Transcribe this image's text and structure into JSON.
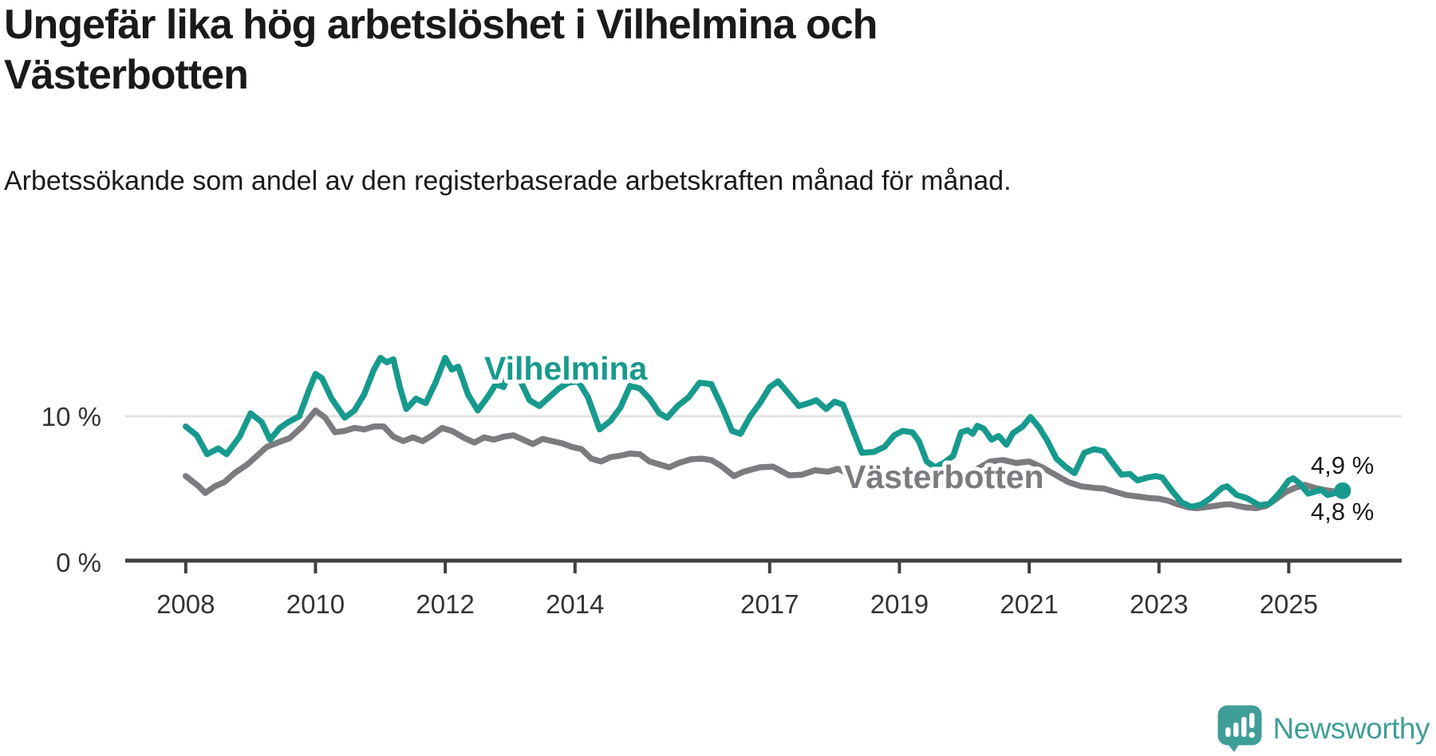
{
  "header": {
    "title": "Ungefär lika hög arbetslöshet i Vilhelmina och Västerbotten",
    "subtitle": "Arbetssökande som andel av den registerbaserade arbetskraften månad för månad."
  },
  "footer": {
    "brand": "Newsworthy"
  },
  "colors": {
    "vilhelmina": "#179a8d",
    "vasterbotten": "#7b7b80",
    "text": "#1a1a1a",
    "axis": "#404040",
    "axis_text": "#333333",
    "gridline": "#e3e3e3",
    "logo_teal": "#3f9e97"
  },
  "chart_data": {
    "type": "line",
    "unit": "%",
    "x_axis": {
      "ticks": [
        2008,
        2010,
        2012,
        2014,
        2017,
        2019,
        2021,
        2023,
        2025
      ],
      "range_years": [
        2007.1,
        2026.7
      ]
    },
    "y_axis": {
      "ticks_pct": [
        10,
        0
      ],
      "tick_labels": [
        "10 %",
        "0 %"
      ],
      "gridline_pct": 10,
      "ylim": [
        0,
        15.5
      ]
    },
    "series": [
      {
        "id": "vilhelmina",
        "name": "Vilhelmina",
        "color": "#179a8d",
        "end_label": "4,9 %",
        "end_value": 4.9,
        "end_dot": true,
        "points": [
          [
            2008.0,
            9.3
          ],
          [
            2008.17,
            8.7
          ],
          [
            2008.33,
            7.4
          ],
          [
            2008.5,
            7.8
          ],
          [
            2008.63,
            7.4
          ],
          [
            2008.83,
            8.6
          ],
          [
            2009.0,
            10.2
          ],
          [
            2009.17,
            9.6
          ],
          [
            2009.3,
            8.4
          ],
          [
            2009.45,
            9.2
          ],
          [
            2009.58,
            9.6
          ],
          [
            2009.75,
            10.0
          ],
          [
            2009.9,
            11.8
          ],
          [
            2010.0,
            12.9
          ],
          [
            2010.1,
            12.6
          ],
          [
            2010.25,
            11.2
          ],
          [
            2010.45,
            9.9
          ],
          [
            2010.6,
            10.4
          ],
          [
            2010.75,
            11.5
          ],
          [
            2010.9,
            13.2
          ],
          [
            2011.0,
            14.0
          ],
          [
            2011.1,
            13.7
          ],
          [
            2011.2,
            13.9
          ],
          [
            2011.3,
            12.0
          ],
          [
            2011.4,
            10.5
          ],
          [
            2011.55,
            11.2
          ],
          [
            2011.7,
            10.9
          ],
          [
            2011.85,
            12.3
          ],
          [
            2012.0,
            14.0
          ],
          [
            2012.1,
            13.2
          ],
          [
            2012.2,
            13.4
          ],
          [
            2012.35,
            11.5
          ],
          [
            2012.5,
            10.4
          ],
          [
            2012.65,
            11.3
          ],
          [
            2012.78,
            12.2
          ],
          [
            2012.9,
            12.0
          ],
          [
            2013.0,
            13.4
          ],
          [
            2013.15,
            12.5
          ],
          [
            2013.3,
            11.1
          ],
          [
            2013.45,
            10.7
          ],
          [
            2013.6,
            11.3
          ],
          [
            2013.75,
            11.9
          ],
          [
            2013.9,
            12.3
          ],
          [
            2014.05,
            12.4
          ],
          [
            2014.2,
            11.3
          ],
          [
            2014.38,
            9.1
          ],
          [
            2014.55,
            9.7
          ],
          [
            2014.7,
            10.6
          ],
          [
            2014.85,
            12.1
          ],
          [
            2015.0,
            11.9
          ],
          [
            2015.15,
            11.2
          ],
          [
            2015.3,
            10.2
          ],
          [
            2015.42,
            9.9
          ],
          [
            2015.58,
            10.7
          ],
          [
            2015.75,
            11.3
          ],
          [
            2015.92,
            12.3
          ],
          [
            2016.1,
            12.2
          ],
          [
            2016.28,
            10.5
          ],
          [
            2016.42,
            9.0
          ],
          [
            2016.55,
            8.8
          ],
          [
            2016.7,
            10.0
          ],
          [
            2016.85,
            10.9
          ],
          [
            2017.0,
            12.0
          ],
          [
            2017.13,
            12.4
          ],
          [
            2017.3,
            11.5
          ],
          [
            2017.45,
            10.7
          ],
          [
            2017.6,
            10.9
          ],
          [
            2017.72,
            11.1
          ],
          [
            2017.87,
            10.5
          ],
          [
            2018.0,
            11.0
          ],
          [
            2018.13,
            10.8
          ],
          [
            2018.27,
            9.2
          ],
          [
            2018.42,
            7.5
          ],
          [
            2018.6,
            7.55
          ],
          [
            2018.77,
            7.9
          ],
          [
            2018.92,
            8.7
          ],
          [
            2019.05,
            9.0
          ],
          [
            2019.2,
            8.9
          ],
          [
            2019.3,
            8.3
          ],
          [
            2019.42,
            6.9
          ],
          [
            2019.55,
            6.5
          ],
          [
            2019.7,
            6.85
          ],
          [
            2019.83,
            7.3
          ],
          [
            2019.95,
            8.9
          ],
          [
            2020.05,
            9.05
          ],
          [
            2020.13,
            8.8
          ],
          [
            2020.2,
            9.35
          ],
          [
            2020.3,
            9.15
          ],
          [
            2020.42,
            8.4
          ],
          [
            2020.53,
            8.65
          ],
          [
            2020.65,
            8.05
          ],
          [
            2020.75,
            8.85
          ],
          [
            2020.9,
            9.3
          ],
          [
            2021.02,
            9.95
          ],
          [
            2021.15,
            9.25
          ],
          [
            2021.27,
            8.4
          ],
          [
            2021.42,
            7.1
          ],
          [
            2021.57,
            6.5
          ],
          [
            2021.7,
            6.1
          ],
          [
            2021.85,
            7.5
          ],
          [
            2022.0,
            7.75
          ],
          [
            2022.15,
            7.6
          ],
          [
            2022.3,
            6.7
          ],
          [
            2022.42,
            6.0
          ],
          [
            2022.55,
            6.05
          ],
          [
            2022.67,
            5.6
          ],
          [
            2022.82,
            5.8
          ],
          [
            2022.95,
            5.9
          ],
          [
            2023.05,
            5.8
          ],
          [
            2023.2,
            4.9
          ],
          [
            2023.35,
            4.1
          ],
          [
            2023.5,
            3.8
          ],
          [
            2023.65,
            3.95
          ],
          [
            2023.8,
            4.4
          ],
          [
            2023.97,
            5.1
          ],
          [
            2024.05,
            5.2
          ],
          [
            2024.2,
            4.6
          ],
          [
            2024.35,
            4.4
          ],
          [
            2024.55,
            3.9
          ],
          [
            2024.7,
            4.0
          ],
          [
            2024.85,
            4.7
          ],
          [
            2025.0,
            5.6
          ],
          [
            2025.07,
            5.75
          ],
          [
            2025.17,
            5.4
          ],
          [
            2025.3,
            4.7
          ],
          [
            2025.42,
            4.85
          ],
          [
            2025.5,
            4.95
          ],
          [
            2025.6,
            4.6
          ],
          [
            2025.72,
            4.75
          ],
          [
            2025.83,
            4.9
          ]
        ]
      },
      {
        "id": "vasterbotten",
        "name": "Västerbotten",
        "color": "#7b7b80",
        "end_label": "4,8 %",
        "end_value": 4.8,
        "end_dot": false,
        "points": [
          [
            2008.0,
            5.9
          ],
          [
            2008.2,
            5.2
          ],
          [
            2008.3,
            4.75
          ],
          [
            2008.45,
            5.2
          ],
          [
            2008.6,
            5.5
          ],
          [
            2008.75,
            6.1
          ],
          [
            2008.95,
            6.7
          ],
          [
            2009.1,
            7.3
          ],
          [
            2009.25,
            7.9
          ],
          [
            2009.45,
            8.25
          ],
          [
            2009.6,
            8.5
          ],
          [
            2009.8,
            9.3
          ],
          [
            2010.0,
            10.4
          ],
          [
            2010.15,
            9.9
          ],
          [
            2010.3,
            8.9
          ],
          [
            2010.45,
            9.0
          ],
          [
            2010.6,
            9.2
          ],
          [
            2010.75,
            9.1
          ],
          [
            2010.9,
            9.3
          ],
          [
            2011.05,
            9.3
          ],
          [
            2011.2,
            8.6
          ],
          [
            2011.35,
            8.3
          ],
          [
            2011.5,
            8.55
          ],
          [
            2011.65,
            8.3
          ],
          [
            2011.8,
            8.7
          ],
          [
            2011.95,
            9.2
          ],
          [
            2012.1,
            9.0
          ],
          [
            2012.3,
            8.5
          ],
          [
            2012.45,
            8.2
          ],
          [
            2012.6,
            8.55
          ],
          [
            2012.75,
            8.4
          ],
          [
            2012.9,
            8.6
          ],
          [
            2013.05,
            8.7
          ],
          [
            2013.2,
            8.4
          ],
          [
            2013.35,
            8.1
          ],
          [
            2013.5,
            8.45
          ],
          [
            2013.65,
            8.3
          ],
          [
            2013.8,
            8.15
          ],
          [
            2013.95,
            7.9
          ],
          [
            2014.1,
            7.75
          ],
          [
            2014.25,
            7.1
          ],
          [
            2014.4,
            6.9
          ],
          [
            2014.55,
            7.2
          ],
          [
            2014.7,
            7.3
          ],
          [
            2014.85,
            7.45
          ],
          [
            2015.0,
            7.4
          ],
          [
            2015.15,
            6.9
          ],
          [
            2015.3,
            6.7
          ],
          [
            2015.45,
            6.5
          ],
          [
            2015.6,
            6.8
          ],
          [
            2015.78,
            7.05
          ],
          [
            2015.95,
            7.1
          ],
          [
            2016.1,
            7.0
          ],
          [
            2016.25,
            6.6
          ],
          [
            2016.45,
            5.9
          ],
          [
            2016.6,
            6.2
          ],
          [
            2016.85,
            6.5
          ],
          [
            2017.05,
            6.55
          ],
          [
            2017.3,
            5.95
          ],
          [
            2017.5,
            6.0
          ],
          [
            2017.7,
            6.3
          ],
          [
            2017.9,
            6.2
          ],
          [
            2018.05,
            6.4
          ],
          [
            2018.25,
            6.0
          ],
          [
            2018.45,
            5.7
          ],
          [
            2018.65,
            5.6
          ],
          [
            2018.85,
            5.8
          ],
          [
            2019.0,
            5.9
          ],
          [
            2019.2,
            5.7
          ],
          [
            2019.4,
            5.4
          ],
          [
            2019.6,
            5.3
          ],
          [
            2019.8,
            5.4
          ],
          [
            2020.0,
            5.7
          ],
          [
            2020.2,
            6.4
          ],
          [
            2020.4,
            6.9
          ],
          [
            2020.6,
            7.0
          ],
          [
            2020.8,
            6.8
          ],
          [
            2021.0,
            6.9
          ],
          [
            2021.2,
            6.5
          ],
          [
            2021.4,
            6.0
          ],
          [
            2021.6,
            5.5
          ],
          [
            2021.8,
            5.2
          ],
          [
            2022.0,
            5.1
          ],
          [
            2022.15,
            5.05
          ],
          [
            2022.3,
            4.85
          ],
          [
            2022.5,
            4.6
          ],
          [
            2022.68,
            4.5
          ],
          [
            2022.85,
            4.4
          ],
          [
            2023.0,
            4.35
          ],
          [
            2023.15,
            4.2
          ],
          [
            2023.3,
            3.95
          ],
          [
            2023.45,
            3.76
          ],
          [
            2023.58,
            3.7
          ],
          [
            2023.7,
            3.76
          ],
          [
            2023.85,
            3.85
          ],
          [
            2024.0,
            3.95
          ],
          [
            2024.1,
            3.97
          ],
          [
            2024.22,
            3.85
          ],
          [
            2024.35,
            3.75
          ],
          [
            2024.5,
            3.7
          ],
          [
            2024.65,
            3.85
          ],
          [
            2024.8,
            4.3
          ],
          [
            2024.95,
            4.8
          ],
          [
            2025.1,
            5.1
          ],
          [
            2025.25,
            5.3
          ],
          [
            2025.4,
            5.1
          ],
          [
            2025.55,
            4.95
          ],
          [
            2025.7,
            4.85
          ],
          [
            2025.83,
            4.8
          ]
        ]
      }
    ]
  }
}
